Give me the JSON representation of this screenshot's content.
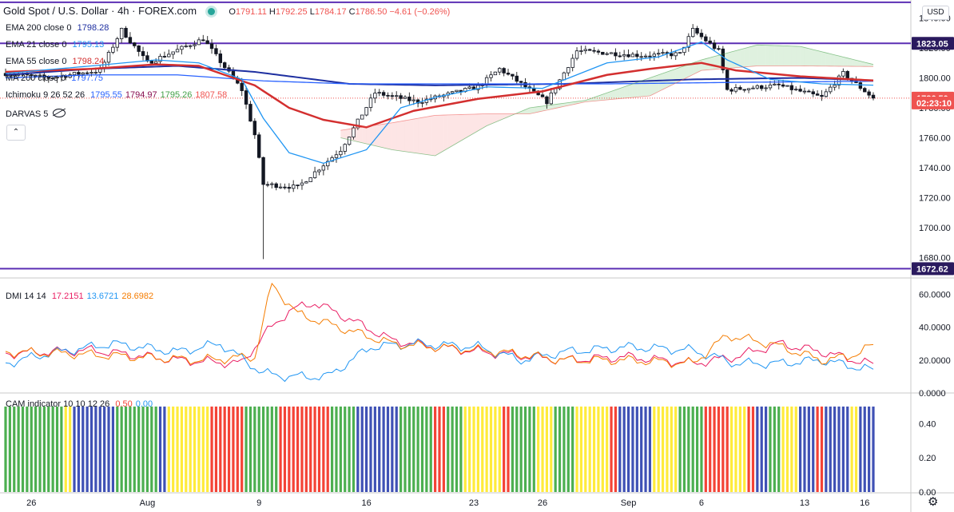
{
  "header": {
    "symbol": "Gold Spot / U.S. Dollar",
    "interval": "4h",
    "source": "FOREX.com",
    "open_label": "O",
    "open": "1791.11",
    "high_label": "H",
    "high": "1792.25",
    "low_label": "L",
    "low": "1784.17",
    "close_label": "C",
    "close": "1786.50",
    "change": "−4.61 (−0.26%)"
  },
  "currency": "USD",
  "price_legend": [
    {
      "label": "EMA 200 close 0",
      "value": "1798.28",
      "color": "#1e2fa0"
    },
    {
      "label": "EMA 21 close 0",
      "value": "1795.13",
      "color": "#2196f3"
    },
    {
      "label": "EMA 55 close 0",
      "value": "1798.24",
      "color": "#d32f2f"
    },
    {
      "label": "MA 200 close 0",
      "value": "1797.75",
      "color": "#2962ff"
    }
  ],
  "ichimoku": {
    "label": "Ichimoku 9 26 52 26",
    "values": [
      "1795.55",
      "1794.97",
      "1795.26",
      "1807.58"
    ],
    "colors": [
      "#2962ff",
      "#880e4f",
      "#43a047",
      "#ef5350"
    ]
  },
  "darvas": {
    "label": "DARVAS 5"
  },
  "dmi_legend": {
    "label": "DMI 14 14",
    "values": [
      "17.2151",
      "13.6721",
      "28.6982"
    ],
    "colors": [
      "#e91e63",
      "#2196f3",
      "#f57c00"
    ]
  },
  "cam_legend": {
    "label": "CAM indicator 10 10 12 26",
    "values": [
      "0.50",
      "0.00"
    ],
    "colors": [
      "#f44336",
      "#2196f3"
    ]
  },
  "price_labels": [
    {
      "text": "1823.05",
      "value": 1823.05,
      "kind": "line"
    },
    {
      "text": "1786.50",
      "value": 1786.5,
      "kind": "last",
      "color": "#ef5350"
    },
    {
      "text": "02:23:10",
      "value": 1783.3,
      "kind": "countdown",
      "color": "#ef5350"
    },
    {
      "text": "1672.62",
      "value": 1672.62,
      "kind": "line"
    }
  ],
  "settings_icon": "gear-icon",
  "chart_data": [
    {
      "type": "candlestick",
      "title": "Gold Spot / U.S. Dollar · 4h · FOREX.com",
      "ylim": [
        1668,
        1852
      ],
      "y_ticks": [
        "1840.00",
        "1820.00",
        "1800.00",
        "1780.00",
        "1760.00",
        "1740.00",
        "1720.00",
        "1700.00",
        "1680.00"
      ],
      "y_tick_values": [
        1840,
        1820,
        1800,
        1780,
        1760,
        1740,
        1720,
        1700,
        1680
      ],
      "x_ticks": [
        "26",
        "Aug",
        "9",
        "16",
        "23",
        "26",
        "Sep",
        "6",
        "13",
        "16"
      ],
      "x_tick_bars": [
        6,
        33,
        59,
        84,
        109,
        125,
        145,
        162,
        186,
        200
      ],
      "horizontal_lines": [
        1850.5,
        1823.05,
        1672.62
      ],
      "bars_shown": 203,
      "key_points": [
        {
          "bar": 0,
          "price": 1803
        },
        {
          "bar": 10,
          "price": 1800
        },
        {
          "bar": 22,
          "price": 1805
        },
        {
          "bar": 27,
          "price": 1832
        },
        {
          "bar": 33,
          "price": 1810
        },
        {
          "bar": 46,
          "price": 1826
        },
        {
          "bar": 55,
          "price": 1792
        },
        {
          "bar": 58,
          "price": 1762
        },
        {
          "bar": 60,
          "price": 1729
        },
        {
          "bar": 68,
          "price": 1727
        },
        {
          "bar": 78,
          "price": 1752
        },
        {
          "bar": 86,
          "price": 1790
        },
        {
          "bar": 96,
          "price": 1784
        },
        {
          "bar": 110,
          "price": 1794
        },
        {
          "bar": 115,
          "price": 1806
        },
        {
          "bar": 126,
          "price": 1784
        },
        {
          "bar": 133,
          "price": 1818
        },
        {
          "bar": 148,
          "price": 1815
        },
        {
          "bar": 157,
          "price": 1816
        },
        {
          "bar": 160,
          "price": 1832
        },
        {
          "bar": 166,
          "price": 1818
        },
        {
          "bar": 168,
          "price": 1792
        },
        {
          "bar": 180,
          "price": 1795
        },
        {
          "bar": 190,
          "price": 1787
        },
        {
          "bar": 195,
          "price": 1803
        },
        {
          "bar": 202,
          "price": 1786.5
        }
      ],
      "series": [
        {
          "name": "EMA 200",
          "color": "#1e2fa0",
          "points": [
            [
              0,
              1802
            ],
            [
              20,
              1806
            ],
            [
              40,
              1808
            ],
            [
              58,
              1804
            ],
            [
              80,
              1796
            ],
            [
              100,
              1795
            ],
            [
              130,
              1796
            ],
            [
              160,
              1799
            ],
            [
              185,
              1800
            ],
            [
              202,
              1798.3
            ]
          ]
        },
        {
          "name": "MA 200",
          "color": "#2962ff",
          "points": [
            [
              0,
              1800
            ],
            [
              20,
              1802
            ],
            [
              40,
              1802
            ],
            [
              60,
              1798
            ],
            [
              80,
              1796
            ],
            [
              110,
              1796
            ],
            [
              140,
              1796
            ],
            [
              170,
              1797
            ],
            [
              202,
              1797.75
            ]
          ]
        },
        {
          "name": "EMA 55",
          "color": "#d32f2f",
          "points": [
            [
              0,
              1804
            ],
            [
              20,
              1806
            ],
            [
              35,
              1809
            ],
            [
              45,
              1808
            ],
            [
              58,
              1795
            ],
            [
              66,
              1780
            ],
            [
              74,
              1772
            ],
            [
              84,
              1767
            ],
            [
              95,
              1778
            ],
            [
              110,
              1786
            ],
            [
              125,
              1791
            ],
            [
              140,
              1802
            ],
            [
              150,
              1806
            ],
            [
              162,
              1810
            ],
            [
              170,
              1805
            ],
            [
              185,
              1801
            ],
            [
              202,
              1798.24
            ]
          ]
        },
        {
          "name": "EMA 21",
          "color": "#2196f3",
          "points": [
            [
              0,
              1803
            ],
            [
              20,
              1808
            ],
            [
              35,
              1812
            ],
            [
              45,
              1810
            ],
            [
              55,
              1799
            ],
            [
              60,
              1773
            ],
            [
              66,
              1750
            ],
            [
              74,
              1743
            ],
            [
              84,
              1752
            ],
            [
              92,
              1780
            ],
            [
              100,
              1787
            ],
            [
              112,
              1794
            ],
            [
              125,
              1793
            ],
            [
              140,
              1810
            ],
            [
              152,
              1814
            ],
            [
              162,
              1824
            ],
            [
              168,
              1812
            ],
            [
              178,
              1799
            ],
            [
              190,
              1796
            ],
            [
              202,
              1795.13
            ]
          ]
        },
        {
          "name": "Ichimoku Span A",
          "color": "#43a047",
          "points": [
            [
              78,
              1760
            ],
            [
              90,
              1752
            ],
            [
              100,
              1748
            ],
            [
              112,
              1768
            ],
            [
              122,
              1780
            ],
            [
              135,
              1785
            ],
            [
              150,
              1800
            ],
            [
              162,
              1812
            ],
            [
              175,
              1822
            ],
            [
              185,
              1821
            ],
            [
              202,
              1809
            ]
          ]
        },
        {
          "name": "Ichimoku Span B",
          "color": "#ef5350",
          "points": [
            [
              78,
              1765
            ],
            [
              90,
              1770
            ],
            [
              100,
              1775
            ],
            [
              112,
              1776
            ],
            [
              122,
              1776
            ],
            [
              135,
              1784
            ],
            [
              150,
              1788
            ],
            [
              162,
              1805
            ],
            [
              175,
              1808
            ],
            [
              185,
              1808
            ],
            [
              202,
              1807.58
            ]
          ]
        }
      ]
    },
    {
      "type": "line",
      "title": "DMI 14 14",
      "ylim": [
        0,
        68
      ],
      "y_ticks": [
        "60.0000",
        "40.0000",
        "20.0000",
        "0.0000"
      ],
      "y_tick_values": [
        60,
        40,
        20,
        0
      ],
      "series": [
        {
          "name": "+DI",
          "color": "#e91e63",
          "points": [
            [
              0,
              24
            ],
            [
              20,
              26
            ],
            [
              40,
              20
            ],
            [
              55,
              18
            ],
            [
              60,
              35
            ],
            [
              66,
              50
            ],
            [
              72,
              55
            ],
            [
              80,
              45
            ],
            [
              90,
              32
            ],
            [
              100,
              28
            ],
            [
              115,
              24
            ],
            [
              130,
              20
            ],
            [
              145,
              22
            ],
            [
              160,
              18
            ],
            [
              170,
              22
            ],
            [
              180,
              30
            ],
            [
              190,
              25
            ],
            [
              202,
              17.2
            ]
          ]
        },
        {
          "name": "-DI",
          "color": "#2196f3",
          "points": [
            [
              0,
              18
            ],
            [
              10,
              24
            ],
            [
              25,
              30
            ],
            [
              40,
              25
            ],
            [
              50,
              30
            ],
            [
              60,
              12
            ],
            [
              66,
              10
            ],
            [
              75,
              10
            ],
            [
              85,
              28
            ],
            [
              95,
              30
            ],
            [
              110,
              28
            ],
            [
              120,
              20
            ],
            [
              130,
              25
            ],
            [
              145,
              28
            ],
            [
              160,
              26
            ],
            [
              170,
              18
            ],
            [
              180,
              18
            ],
            [
              190,
              20
            ],
            [
              202,
              13.7
            ]
          ]
        },
        {
          "name": "ADX",
          "color": "#f57c00",
          "points": [
            [
              0,
              25
            ],
            [
              15,
              24
            ],
            [
              30,
              22
            ],
            [
              45,
              20
            ],
            [
              58,
              22
            ],
            [
              62,
              66
            ],
            [
              68,
              48
            ],
            [
              80,
              38
            ],
            [
              90,
              30
            ],
            [
              100,
              28
            ],
            [
              115,
              25
            ],
            [
              130,
              20
            ],
            [
              145,
              20
            ],
            [
              160,
              18
            ],
            [
              168,
              35
            ],
            [
              178,
              30
            ],
            [
              190,
              20
            ],
            [
              196,
              22
            ],
            [
              202,
              28.7
            ]
          ]
        }
      ]
    },
    {
      "type": "bar",
      "title": "CAM indicator 10 10 12 26",
      "ylim": [
        0,
        0.57
      ],
      "y_ticks": [
        "0.40",
        "0.20",
        "0.00"
      ],
      "y_tick_values": [
        0.4,
        0.2,
        0
      ],
      "bar_value": 0.5,
      "color_legend": {
        "R": "#f44336",
        "G": "#4caf50",
        "Y": "#ffeb3b",
        "B": "#3f51b5"
      },
      "segments": [
        [
          "G",
          14
        ],
        [
          "Y",
          2
        ],
        [
          "B",
          10
        ],
        [
          "G",
          10
        ],
        [
          "B",
          2
        ],
        [
          "Y",
          10
        ],
        [
          "R",
          8
        ],
        [
          "G",
          8
        ],
        [
          "R",
          12
        ],
        [
          "G",
          6
        ],
        [
          "B",
          10
        ],
        [
          "G",
          8
        ],
        [
          "R",
          3
        ],
        [
          "G",
          4
        ],
        [
          "Y",
          9
        ],
        [
          "R",
          2
        ],
        [
          "G",
          6
        ],
        [
          "Y",
          4
        ],
        [
          "G",
          5
        ],
        [
          "Y",
          8
        ],
        [
          "R",
          2
        ],
        [
          "B",
          8
        ],
        [
          "Y",
          6
        ],
        [
          "G",
          6
        ],
        [
          "R",
          6
        ],
        [
          "Y",
          4
        ],
        [
          "R",
          2
        ],
        [
          "B",
          3
        ],
        [
          "G",
          3
        ],
        [
          "Y",
          4
        ],
        [
          "B",
          4
        ],
        [
          "R",
          2
        ],
        [
          "B",
          6
        ],
        [
          "Y",
          2
        ],
        [
          "B",
          4
        ]
      ]
    }
  ]
}
